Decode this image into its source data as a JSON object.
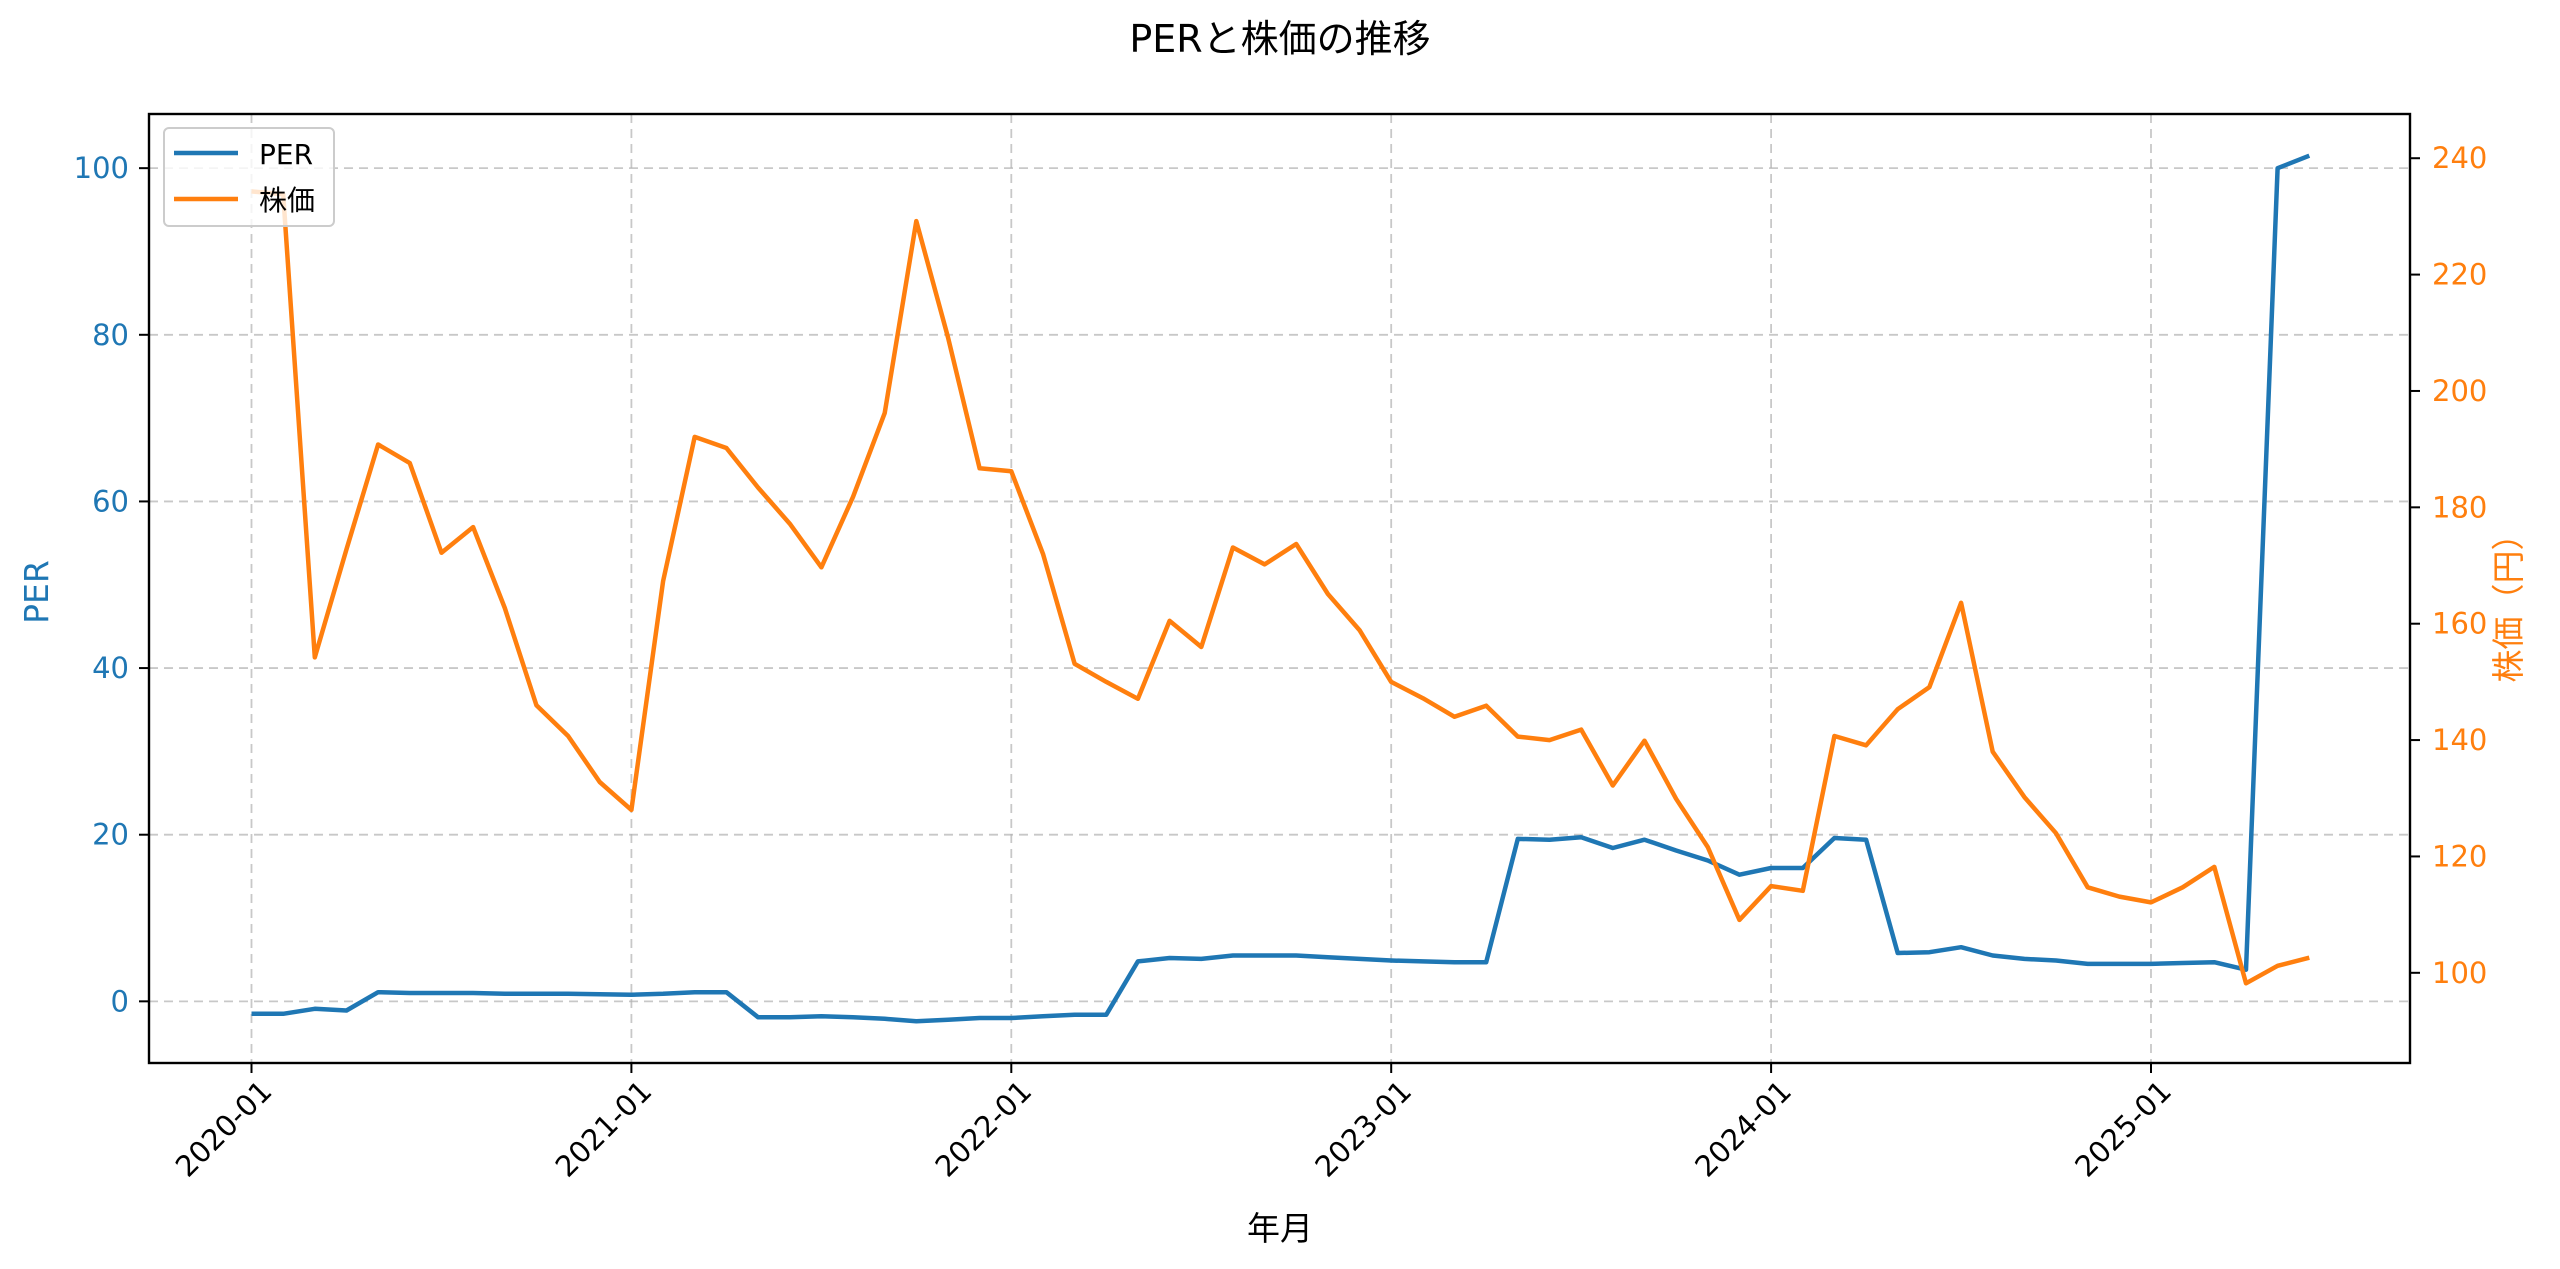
{
  "chart_data": {
    "type": "line",
    "title": "PERと株価の推移",
    "xlabel": "年月",
    "ylabel": "PER",
    "ylabel_right": "株価（円）",
    "x_ticks": [
      "2020-01",
      "2021-01",
      "2022-01",
      "2023-01",
      "2024-01",
      "2025-01"
    ],
    "y_ticks_left": [
      0,
      20,
      40,
      60,
      80,
      100
    ],
    "y_ticks_right": [
      100,
      120,
      140,
      160,
      180,
      200,
      220,
      240
    ],
    "ylim_left": [
      -7.4,
      106.5
    ],
    "ylim_right": [
      84.5,
      247.6
    ],
    "grid": true,
    "legend_position": "upper left",
    "x": [
      "2020-01",
      "2020-02",
      "2020-03",
      "2020-04",
      "2020-05",
      "2020-06",
      "2020-07",
      "2020-08",
      "2020-09",
      "2020-10",
      "2020-11",
      "2020-12",
      "2021-01",
      "2021-02",
      "2021-03",
      "2021-04",
      "2021-05",
      "2021-06",
      "2021-07",
      "2021-08",
      "2021-09",
      "2021-10",
      "2021-11",
      "2021-12",
      "2022-01",
      "2022-02",
      "2022-03",
      "2022-04",
      "2022-05",
      "2022-06",
      "2022-07",
      "2022-08",
      "2022-09",
      "2022-10",
      "2022-11",
      "2022-12",
      "2023-01",
      "2023-02",
      "2023-03",
      "2023-04",
      "2023-05",
      "2023-06",
      "2023-07",
      "2023-08",
      "2023-09",
      "2023-10",
      "2023-11",
      "2023-12",
      "2024-01",
      "2024-02",
      "2024-03",
      "2024-04",
      "2024-05",
      "2024-06",
      "2024-07",
      "2024-08",
      "2024-09",
      "2024-10",
      "2024-11",
      "2024-12",
      "2025-01",
      "2025-02",
      "2025-03",
      "2025-04",
      "2025-05",
      "2025-06"
    ],
    "series": [
      {
        "name": "PER",
        "axis": "left",
        "color": "#1f77b4",
        "values": [
          -1.5,
          -1.5,
          -0.9,
          -1.1,
          1.1,
          1.0,
          1.0,
          1.0,
          0.9,
          0.9,
          0.9,
          0.85,
          0.8,
          0.9,
          1.1,
          1.1,
          -1.9,
          -1.9,
          -1.8,
          -1.9,
          -2.1,
          -2.4,
          -2.2,
          -2.0,
          -2.0,
          -1.8,
          -1.6,
          -1.6,
          4.8,
          5.2,
          5.1,
          5.5,
          5.5,
          5.5,
          5.3,
          5.1,
          4.9,
          4.8,
          4.7,
          4.7,
          19.5,
          19.4,
          19.7,
          18.4,
          19.4,
          18.1,
          16.9,
          15.2,
          16.0,
          16.0,
          19.6,
          19.4,
          5.8,
          5.9,
          6.5,
          5.5,
          5.1,
          4.9,
          4.5,
          4.5,
          4.5,
          4.6,
          4.7,
          3.8,
          100.0,
          101.5
        ]
      },
      {
        "name": "株価",
        "axis": "right",
        "color": "#ff7f0e",
        "values": [
          234.3,
          233.8,
          154.2,
          172.8,
          190.8,
          187.6,
          172.2,
          176.6,
          162.7,
          146.0,
          140.7,
          132.8,
          128.0,
          167.3,
          192.1,
          190.2,
          183.4,
          177.2,
          169.7,
          181.8,
          196.2,
          229.2,
          209.2,
          186.7,
          186.2,
          172.0,
          153.1,
          150.0,
          147.1,
          160.5,
          156.0,
          173.1,
          170.2,
          173.7,
          165.1,
          158.9,
          150.0,
          147.2,
          144.0,
          145.9,
          140.6,
          140.0,
          141.8,
          132.2,
          139.9,
          129.9,
          121.6,
          109.1,
          114.9,
          114.1,
          140.7,
          139.1,
          145.3,
          149.1,
          163.6,
          138.0,
          130.2,
          124.0,
          114.7,
          113.1,
          112.1,
          114.7,
          118.2,
          98.2,
          101.2,
          102.6
        ]
      }
    ]
  },
  "legend": {
    "items": [
      {
        "label": "PER",
        "color": "#1f77b4"
      },
      {
        "label": "株価",
        "color": "#ff7f0e"
      }
    ]
  }
}
